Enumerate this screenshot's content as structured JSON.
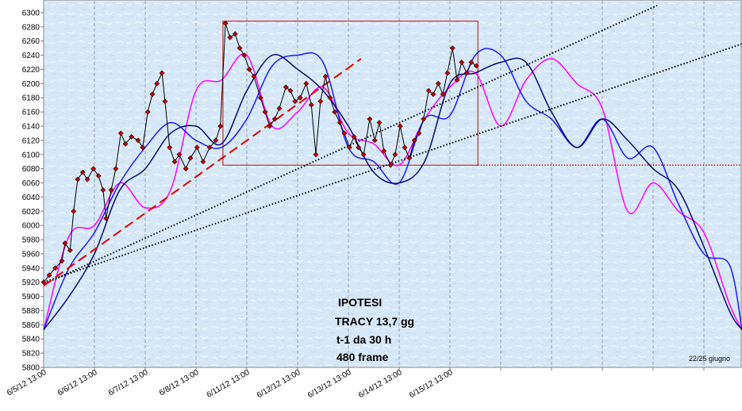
{
  "chart_data": {
    "type": "line",
    "categories": [
      "6/5/12 13:00",
      "6/6/12 13:00",
      "6/7/12 13:00",
      "6/8/12 13:00",
      "6/11/12 13:00",
      "6/12/12 13:00",
      "6/13/12 13:00",
      "6/14/12 13:00",
      "6/15/12 13:00",
      null,
      null,
      null,
      null,
      null
    ],
    "xlim": [
      0,
      13.75
    ],
    "ylim": [
      5800,
      6310
    ],
    "yticks": [
      5800,
      5820,
      5840,
      5860,
      5880,
      5900,
      5920,
      5940,
      5960,
      5980,
      6000,
      6020,
      6040,
      6060,
      6080,
      6100,
      6120,
      6140,
      6160,
      6180,
      6200,
      6220,
      6240,
      6260,
      6280,
      6300
    ],
    "grid": true,
    "annotations": [
      "IPOTESI",
      "TRACY  13,7 gg",
      "t-1 da 30 h",
      "480 frame",
      "22/25 giugno"
    ],
    "series": [
      {
        "color": "#ff00ff",
        "style": "smooth",
        "x": [
          0,
          0.5,
          1,
          1.5,
          2,
          2.5,
          3,
          3.5,
          4,
          4.5,
          5,
          5.5,
          6,
          6.5,
          7,
          7.5,
          8,
          8.5,
          9,
          9.5,
          10,
          10.5,
          11,
          11.5,
          12,
          12.5,
          13,
          13.5,
          13.75
        ],
        "values": [
          5853,
          5985,
          6000,
          6060,
          6025,
          6050,
          6190,
          6205,
          6240,
          6140,
          6160,
          6195,
          6130,
          6115,
          6085,
          6150,
          6195,
          6215,
          6140,
          6205,
          6235,
          6200,
          6165,
          6020,
          6060,
          6020,
          5990,
          5890,
          5853
        ]
      },
      {
        "color": "#1a1aff",
        "style": "smooth",
        "x": [
          0,
          0.5,
          1,
          1.5,
          2,
          2.5,
          3,
          3.5,
          4,
          4.5,
          5,
          5.5,
          6,
          6.5,
          7,
          7.5,
          8,
          8.5,
          9,
          9.5,
          10,
          10.5,
          11,
          11.5,
          12,
          12.5,
          13,
          13.5,
          13.75
        ],
        "values": [
          5853,
          5940,
          5990,
          6060,
          6110,
          6145,
          6120,
          6110,
          6150,
          6225,
          6240,
          6230,
          6110,
          6090,
          6060,
          6150,
          6155,
          6240,
          6240,
          6175,
          6150,
          6110,
          6150,
          6095,
          6110,
          6030,
          5960,
          5945,
          5853
        ]
      },
      {
        "color": "#0a0a6e",
        "style": "smooth",
        "x": [
          0,
          0.5,
          1,
          1.5,
          2,
          2.5,
          3,
          3.5,
          4,
          4.5,
          5,
          5.5,
          6,
          6.5,
          7,
          7.5,
          8,
          8.5,
          9,
          9.5,
          10,
          10.5,
          11,
          11.5,
          12,
          12.5,
          13,
          13.5,
          13.75
        ],
        "values": [
          5853,
          5900,
          5960,
          6050,
          6080,
          6130,
          6140,
          6115,
          6190,
          6240,
          6220,
          6190,
          6140,
          6075,
          6060,
          6090,
          6200,
          6215,
          6230,
          6230,
          6160,
          6110,
          6150,
          6120,
          6080,
          6050,
          5970,
          5880,
          5853
        ]
      },
      {
        "color": "#000000",
        "style": "dotted",
        "x": [
          0,
          12.08
        ],
        "values": [
          5917,
          6310
        ]
      },
      {
        "color": "#000000",
        "style": "dotted",
        "x": [
          0,
          13.75
        ],
        "values": [
          5920,
          6256
        ]
      },
      {
        "color": "#e00000",
        "style": "dashed",
        "x": [
          0,
          6.25
        ],
        "values": [
          5915,
          6235
        ]
      },
      {
        "color": "#000000",
        "style": "solid",
        "marker": "diamond",
        "marker_color": "#c00000",
        "x": [
          0,
          0.11,
          0.23,
          0.36,
          0.42,
          0.52,
          0.59,
          0.67,
          0.77,
          0.86,
          0.98,
          1.08,
          1.17,
          1.23,
          1.33,
          1.42,
          1.52,
          1.61,
          1.73,
          1.86,
          1.95,
          2.05,
          2.14,
          2.23,
          2.33,
          2.39,
          2.48,
          2.58,
          2.67,
          2.8,
          2.89,
          3.02,
          3.14,
          3.27,
          3.39,
          3.48,
          3.58,
          3.67,
          3.77,
          3.86,
          3.95,
          4.05,
          4.14,
          4.27,
          4.36,
          4.45,
          4.55,
          4.64,
          4.77,
          4.86,
          4.95,
          5.05,
          5.17,
          5.27,
          5.36,
          5.45,
          5.55,
          5.64,
          5.73,
          5.83,
          5.92,
          6.02,
          6.11,
          6.2,
          6.3,
          6.42,
          6.52,
          6.61,
          6.7,
          6.83,
          6.92,
          7.02,
          7.11,
          7.2,
          7.3,
          7.39,
          7.48,
          7.58,
          7.67,
          7.77,
          7.86,
          7.95,
          8.05,
          8.14,
          8.23,
          8.33,
          8.42,
          8.52
        ],
        "values": [
          5920,
          5930,
          5940,
          5950,
          5975,
          5965,
          6020,
          6065,
          6075,
          6065,
          6080,
          6070,
          6050,
          6010,
          6050,
          6080,
          6130,
          6115,
          6125,
          6120,
          6110,
          6160,
          6185,
          6200,
          6215,
          6175,
          6110,
          6090,
          6100,
          6080,
          6095,
          6110,
          6090,
          6110,
          6120,
          6140,
          6285,
          6265,
          6270,
          6250,
          6240,
          6220,
          6210,
          6180,
          6160,
          6140,
          6150,
          6165,
          6195,
          6190,
          6175,
          6180,
          6200,
          6170,
          6100,
          6175,
          6210,
          6180,
          6160,
          6145,
          6130,
          6110,
          6125,
          6110,
          6100,
          6150,
          6120,
          6145,
          6105,
          6085,
          6100,
          6140,
          6110,
          6095,
          6120,
          6130,
          6150,
          6190,
          6185,
          6200,
          6185,
          6215,
          6250,
          6205,
          6230,
          6215,
          6230,
          6225
        ]
      }
    ],
    "box": {
      "color": "#cc0000",
      "xlim": [
        3.53,
        8.55
      ],
      "ylim": [
        6085,
        6288
      ]
    },
    "hline": {
      "color": "#cc0000",
      "value": 6085,
      "xlim": [
        8.55,
        13.75
      ]
    }
  }
}
